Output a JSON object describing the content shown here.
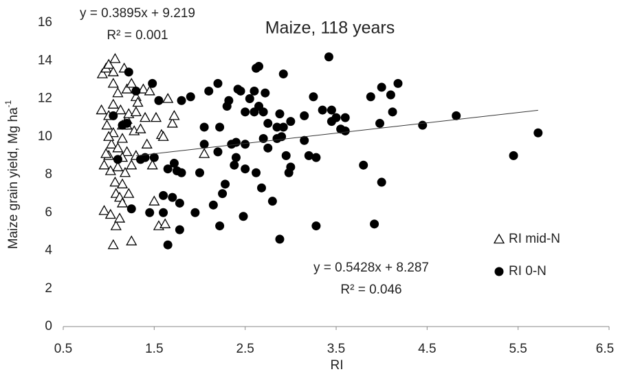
{
  "chart_data": {
    "type": "scatter",
    "title": "Maize, 118 years",
    "xlabel": "RI",
    "ylabel": "Maize grain yield, Mg ha",
    "ylabel_sup": "-1",
    "xlim": [
      0.5,
      6.5
    ],
    "xticks": [
      0.5,
      1.5,
      2.5,
      3.5,
      4.5,
      5.5,
      6.5
    ],
    "ylim": [
      0,
      16
    ],
    "yticks": [
      0,
      2,
      4,
      6,
      8,
      10,
      12,
      14,
      16
    ],
    "grid": false,
    "legend": "right",
    "annotations": [
      "y = 0.3895x + 9.219",
      "R² = 0.001",
      "y = 0.5428x + 8.287",
      "R² = 0.046"
    ],
    "series": [
      {
        "name": "RI mid-N",
        "color": "#000000",
        "marker": "triangle-open",
        "x": [
          0.92,
          0.93,
          0.95,
          0.95,
          0.97,
          0.98,
          1.0,
          1.0,
          1.0,
          1.02,
          1.02,
          1.03,
          1.05,
          1.05,
          1.05,
          1.05,
          1.05,
          1.07,
          1.07,
          1.08,
          1.08,
          1.1,
          1.1,
          1.1,
          1.12,
          1.12,
          1.13,
          1.15,
          1.15,
          1.15,
          1.15,
          1.17,
          1.18,
          1.2,
          1.2,
          1.2,
          1.22,
          1.22,
          1.25,
          1.25,
          1.25,
          1.28,
          1.3,
          1.3,
          1.3,
          1.32,
          1.35,
          1.38,
          1.4,
          1.42,
          1.45,
          1.48,
          1.5,
          1.52,
          1.55,
          1.58,
          1.6,
          1.62,
          1.65,
          1.7,
          1.72,
          1.15,
          1.0,
          0.97,
          1.2,
          2.05
        ],
        "values": [
          11.4,
          13.3,
          8.5,
          6.1,
          13.6,
          10.6,
          13.8,
          11.1,
          9.0,
          5.9,
          8.2,
          9.6,
          13.4,
          12.8,
          11.7,
          10.2,
          4.3,
          14.1,
          7.6,
          7.0,
          5.3,
          12.3,
          9.4,
          8.4,
          6.8,
          5.7,
          11.4,
          10.6,
          9.9,
          7.5,
          6.5,
          13.6,
          8.1,
          12.5,
          10.9,
          9.2,
          11.2,
          7.0,
          12.8,
          8.5,
          4.5,
          10.3,
          12.1,
          11.3,
          9.0,
          11.8,
          10.4,
          12.5,
          11.0,
          9.6,
          12.4,
          8.5,
          6.6,
          11.0,
          5.3,
          10.1,
          10.0,
          5.4,
          12.0,
          10.7,
          11.1,
          8.9,
          10.0,
          9.1,
          10.6,
          9.1
        ]
      },
      {
        "name": "RI 0-N",
        "color": "#000000",
        "marker": "circle",
        "x": [
          1.05,
          1.1,
          1.15,
          1.2,
          1.22,
          1.25,
          1.3,
          1.35,
          1.4,
          1.45,
          1.48,
          1.5,
          1.55,
          1.6,
          1.6,
          1.65,
          1.65,
          1.7,
          1.72,
          1.75,
          1.78,
          1.78,
          1.8,
          1.8,
          1.9,
          1.95,
          2.0,
          2.05,
          2.05,
          2.1,
          2.15,
          2.2,
          2.2,
          2.22,
          2.22,
          2.25,
          2.28,
          2.3,
          2.32,
          2.35,
          2.38,
          2.4,
          2.4,
          2.42,
          2.45,
          2.48,
          2.5,
          2.5,
          2.5,
          2.55,
          2.6,
          2.6,
          2.62,
          2.62,
          2.65,
          2.65,
          2.68,
          2.7,
          2.7,
          2.72,
          2.75,
          2.75,
          2.8,
          2.85,
          2.85,
          2.88,
          2.88,
          2.9,
          2.92,
          2.92,
          2.95,
          2.98,
          3.0,
          3.0,
          3.15,
          3.15,
          3.2,
          3.25,
          3.28,
          3.28,
          3.35,
          3.42,
          3.45,
          3.45,
          3.5,
          3.55,
          3.6,
          3.6,
          3.8,
          3.88,
          3.92,
          3.98,
          4.0,
          4.0,
          4.1,
          4.12,
          4.18,
          4.45,
          4.82,
          5.45,
          5.72
        ],
        "values": [
          11.1,
          8.8,
          10.6,
          10.7,
          13.4,
          6.2,
          12.4,
          8.8,
          8.9,
          6.0,
          12.8,
          8.9,
          11.9,
          6.0,
          6.9,
          4.3,
          8.3,
          6.8,
          8.6,
          8.2,
          6.5,
          5.1,
          8.1,
          11.9,
          12.1,
          6.0,
          8.1,
          9.6,
          10.5,
          12.4,
          6.4,
          9.2,
          12.8,
          10.5,
          5.3,
          7.0,
          7.5,
          11.6,
          11.9,
          9.6,
          8.5,
          8.9,
          9.7,
          12.5,
          12.4,
          5.8,
          8.3,
          9.6,
          11.3,
          12.0,
          11.3,
          12.4,
          13.6,
          8.1,
          13.7,
          11.6,
          7.3,
          9.9,
          11.3,
          12.3,
          9.4,
          10.7,
          6.6,
          10.5,
          9.9,
          11.2,
          4.6,
          10.0,
          13.3,
          10.5,
          9.0,
          8.1,
          8.4,
          10.8,
          9.8,
          11.1,
          9.0,
          12.1,
          8.9,
          5.3,
          11.4,
          14.2,
          11.4,
          10.8,
          11.0,
          10.4,
          10.3,
          11.0,
          8.5,
          12.1,
          5.4,
          10.7,
          7.6,
          12.6,
          12.2,
          11.3,
          12.8,
          10.6,
          11.1,
          9.0,
          10.2
        ],
        "trend_x": [
          1.3,
          5.72
        ],
        "trend_y": [
          8.99,
          11.39
        ]
      }
    ]
  }
}
